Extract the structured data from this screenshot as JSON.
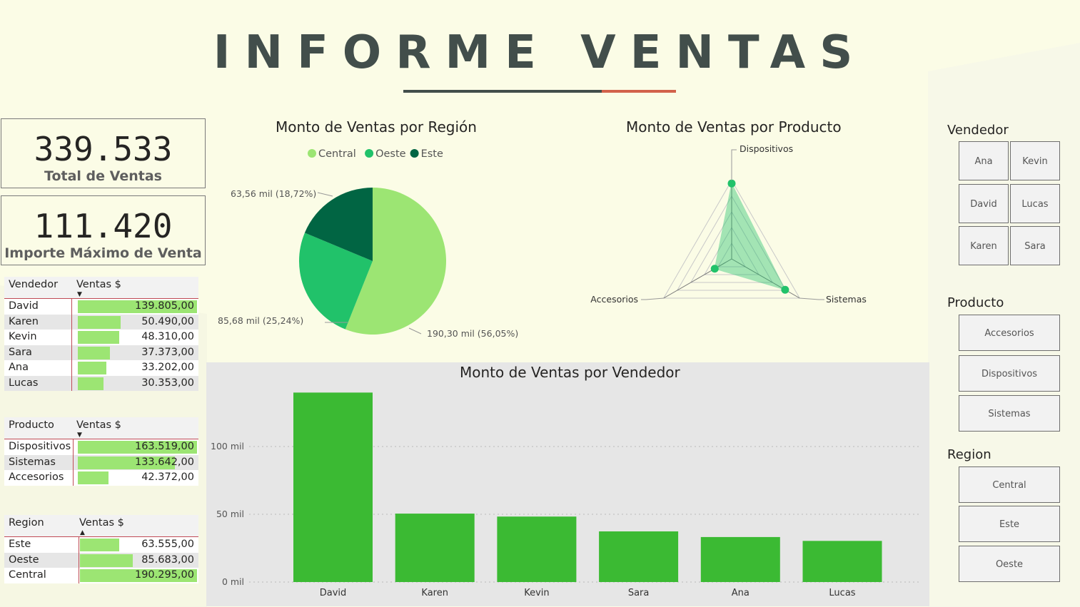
{
  "title": "INFORME VENTAS",
  "kpis": [
    {
      "value": "339.533",
      "label": "Total de Ventas"
    },
    {
      "value": "111.420",
      "label": "Importe Máximo de Venta"
    }
  ],
  "table_vendedor": {
    "col1": "Vendedor",
    "col2": "Ventas $",
    "rows": [
      {
        "name": "David",
        "value": "139.805,00",
        "fraction": 1.0
      },
      {
        "name": "Karen",
        "value": "50.490,00",
        "fraction": 0.361
      },
      {
        "name": "Kevin",
        "value": "48.310,00",
        "fraction": 0.346
      },
      {
        "name": "Sara",
        "value": "37.373,00",
        "fraction": 0.267
      },
      {
        "name": "Ana",
        "value": "33.202,00",
        "fraction": 0.237
      },
      {
        "name": "Lucas",
        "value": "30.353,00",
        "fraction": 0.217
      }
    ]
  },
  "table_producto": {
    "col1": "Producto",
    "col2": "Ventas $",
    "rows": [
      {
        "name": "Dispositivos",
        "value": "163.519,00",
        "fraction": 1.0
      },
      {
        "name": "Sistemas",
        "value": "133.642,00",
        "fraction": 0.817
      },
      {
        "name": "Accesorios",
        "value": "42.372,00",
        "fraction": 0.259
      }
    ]
  },
  "table_region": {
    "col1": "Region",
    "col2": "Ventas $",
    "rows": [
      {
        "name": "Este",
        "value": "63.555,00",
        "fraction": 0.334
      },
      {
        "name": "Oeste",
        "value": "85.683,00",
        "fraction": 0.45
      },
      {
        "name": "Central",
        "value": "190.295,00",
        "fraction": 1.0
      }
    ]
  },
  "slicers": {
    "vendedor": {
      "title": "Vendedor",
      "items": [
        "Ana",
        "Kevin",
        "David",
        "Lucas",
        "Karen",
        "Sara"
      ]
    },
    "producto": {
      "title": "Producto",
      "items": [
        "Accesorios",
        "Dispositivos",
        "Sistemas"
      ]
    },
    "region": {
      "title": "Region",
      "items": [
        "Central",
        "Este",
        "Oeste"
      ]
    }
  },
  "colors": {
    "central": "#9ce573",
    "oeste": "#21c26a",
    "este": "#016543",
    "bar": "#3bba33",
    "accent": "#d2624b"
  },
  "chart_data": [
    {
      "type": "pie",
      "title": "Monto de Ventas por Región",
      "legend": [
        "Central",
        "Oeste",
        "Este"
      ],
      "legend_position": "top",
      "slices": [
        {
          "name": "Central",
          "value": 190.3,
          "label": "190,30 mil (56,05%)"
        },
        {
          "name": "Oeste",
          "value": 85.68,
          "label": "85,68 mil (25,24%)"
        },
        {
          "name": "Este",
          "value": 63.56,
          "label": "63,56 mil (18,72%)"
        }
      ]
    },
    {
      "type": "radar",
      "title": "Monto de Ventas por Producto",
      "categories": [
        "Dispositivos",
        "Sistemas",
        "Accesorios"
      ],
      "values": [
        163519,
        133642,
        42372
      ]
    },
    {
      "type": "bar",
      "title": "Monto de Ventas por Vendedor",
      "categories": [
        "David",
        "Karen",
        "Kevin",
        "Sara",
        "Ana",
        "Lucas"
      ],
      "values": [
        139805,
        50490,
        48310,
        37373,
        33202,
        30353
      ],
      "yticks": [
        "0 mil",
        "50 mil",
        "100 mil"
      ],
      "ylim": [
        0,
        140000
      ],
      "grid": true
    }
  ]
}
